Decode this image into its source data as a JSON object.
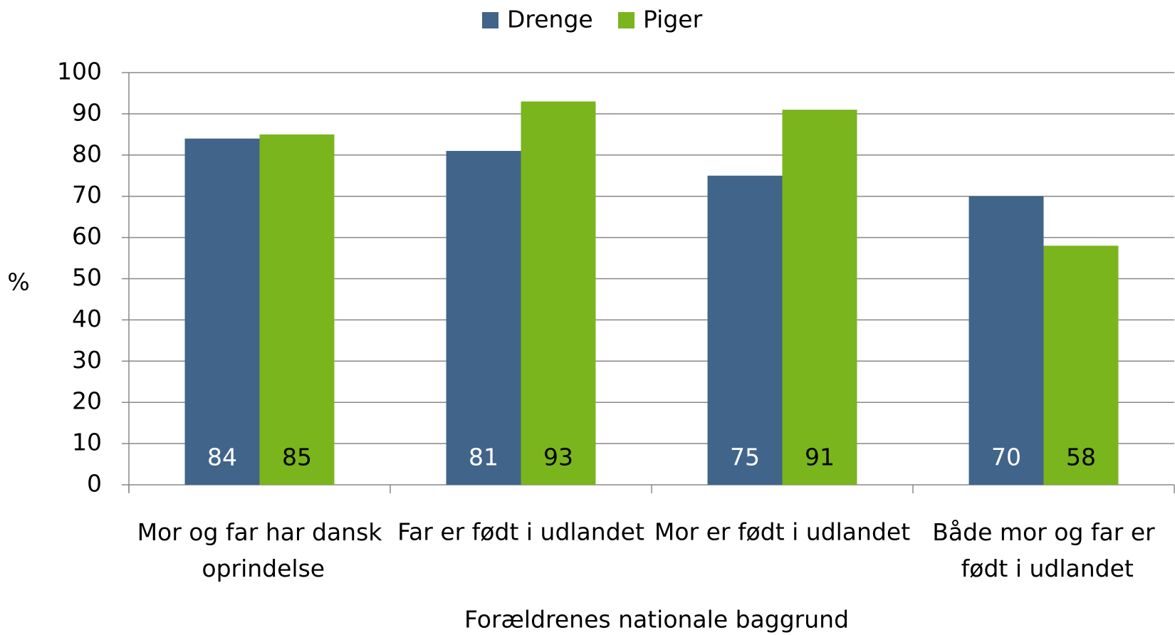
{
  "chart_data": {
    "type": "bar",
    "categories": [
      "Mor og far har dansk oprindelse",
      "Far er født i udlandet",
      "Mor er født i udlandet",
      "Både mor og far er født i udlandet"
    ],
    "series": [
      {
        "name": "Drenge",
        "color": "#41648a",
        "values": [
          84,
          81,
          75,
          70
        ]
      },
      {
        "name": "Piger",
        "color": "#7ab51d",
        "values": [
          85,
          93,
          91,
          58
        ]
      }
    ],
    "ylabel": "%",
    "xlabel": "Forældrenes nationale baggrund",
    "ylim": [
      0,
      100
    ],
    "yticks": [
      0,
      10,
      20,
      30,
      40,
      50,
      60,
      70,
      80,
      90,
      100
    ],
    "grid": true,
    "legend": "top"
  }
}
